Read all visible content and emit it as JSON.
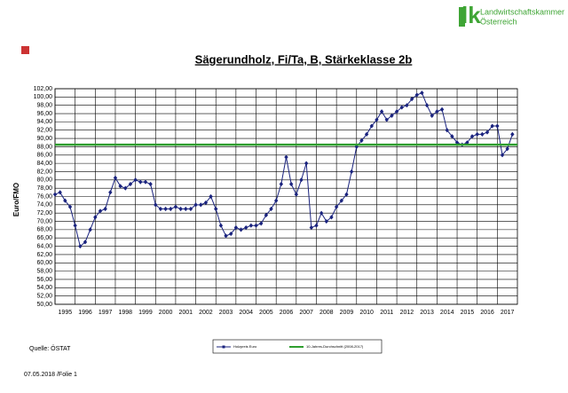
{
  "header": {
    "logo_mark": "lk",
    "logo_line1": "Landwirtschaftskammer",
    "logo_line2": "Österreich"
  },
  "chart_data": {
    "type": "line",
    "title": "Sägerundholz, Fi/Ta, B, Stärkeklasse 2b",
    "y_label": "Euro/FMO",
    "xlim": [
      1995,
      2018
    ],
    "xticks": [
      {
        "value": 1995,
        "label": "1995"
      },
      {
        "value": 1996,
        "label": "1996"
      },
      {
        "value": 1997,
        "label": "1997"
      },
      {
        "value": 1998,
        "label": "1998"
      },
      {
        "value": 1999,
        "label": "1999"
      },
      {
        "value": 2000,
        "label": "2000"
      },
      {
        "value": 2001,
        "label": "2001"
      },
      {
        "value": 2002,
        "label": "2002"
      },
      {
        "value": 2003,
        "label": "2003"
      },
      {
        "value": 2004,
        "label": "2004"
      },
      {
        "value": 2005,
        "label": "2005"
      },
      {
        "value": 2006,
        "label": "2006"
      },
      {
        "value": 2007,
        "label": "2007"
      },
      {
        "value": 2008,
        "label": "2008"
      },
      {
        "value": 2009,
        "label": "2009"
      },
      {
        "value": 2010,
        "label": "2010"
      },
      {
        "value": 2011,
        "label": "2011"
      },
      {
        "value": 2012,
        "label": "2012"
      },
      {
        "value": 2013,
        "label": "2013"
      },
      {
        "value": 2014,
        "label": "2014"
      },
      {
        "value": 2015,
        "label": "2015"
      },
      {
        "value": 2016,
        "label": "2016"
      },
      {
        "value": 2017,
        "label": "2017"
      }
    ],
    "ylim": [
      50,
      102
    ],
    "yticks": [
      {
        "value": 50,
        "label": "50,00"
      },
      {
        "value": 52,
        "label": "52,00"
      },
      {
        "value": 54,
        "label": "54,00"
      },
      {
        "value": 56,
        "label": "56,00"
      },
      {
        "value": 58,
        "label": "58,00"
      },
      {
        "value": 60,
        "label": "60,00"
      },
      {
        "value": 62,
        "label": "62,00"
      },
      {
        "value": 64,
        "label": "64,00"
      },
      {
        "value": 66,
        "label": "66,00"
      },
      {
        "value": 68,
        "label": "68,00"
      },
      {
        "value": 70,
        "label": "70,00"
      },
      {
        "value": 72,
        "label": "72,00"
      },
      {
        "value": 74,
        "label": "74,00"
      },
      {
        "value": 76,
        "label": "76,00"
      },
      {
        "value": 78,
        "label": "78,00"
      },
      {
        "value": 80,
        "label": "80,00"
      },
      {
        "value": 82,
        "label": "82,00"
      },
      {
        "value": 84,
        "label": "84,00"
      },
      {
        "value": 86,
        "label": "86,00"
      },
      {
        "value": 88,
        "label": "88,00"
      },
      {
        "value": 90,
        "label": "90,00"
      },
      {
        "value": 92,
        "label": "92,00"
      },
      {
        "value": 94,
        "label": "94,00"
      },
      {
        "value": 96,
        "label": "96,00"
      },
      {
        "value": 98,
        "label": "98,00"
      },
      {
        "value": 100,
        "label": "100,00"
      },
      {
        "value": 102,
        "label": "102,00"
      }
    ],
    "grid": true,
    "series": [
      {
        "name": "Holzpreis Euro",
        "color": "#1a237e",
        "markers": true,
        "x": [
          1995,
          1995.25,
          1995.5,
          1995.75,
          1996,
          1996.25,
          1996.5,
          1996.75,
          1997,
          1997.25,
          1997.5,
          1997.75,
          1998,
          1998.25,
          1998.5,
          1998.75,
          1999,
          1999.25,
          1999.5,
          1999.75,
          2000,
          2000.25,
          2000.5,
          2000.75,
          2001,
          2001.25,
          2001.5,
          2001.75,
          2002,
          2002.25,
          2002.5,
          2002.75,
          2003,
          2003.25,
          2003.5,
          2003.75,
          2004,
          2004.25,
          2004.5,
          2004.75,
          2005,
          2005.25,
          2005.5,
          2005.75,
          2006,
          2006.25,
          2006.5,
          2006.75,
          2007,
          2007.25,
          2007.5,
          2007.75,
          2008,
          2008.25,
          2008.5,
          2008.75,
          2009,
          2009.25,
          2009.5,
          2009.75,
          2010,
          2010.25,
          2010.5,
          2010.75,
          2011,
          2011.25,
          2011.5,
          2011.75,
          2012,
          2012.25,
          2012.5,
          2012.75,
          2013,
          2013.25,
          2013.5,
          2013.75,
          2014,
          2014.25,
          2014.5,
          2014.75,
          2015,
          2015.25,
          2015.5,
          2015.75,
          2016,
          2016.25,
          2016.5,
          2016.75,
          2017,
          2017.25,
          2017.5,
          2017.75
        ],
        "values": [
          76.5,
          77,
          75,
          73.5,
          69,
          64,
          65,
          68,
          71,
          72.5,
          73,
          77,
          80.5,
          78.5,
          78,
          79,
          80,
          79.5,
          79.5,
          79,
          74,
          73,
          73,
          73,
          73.5,
          73,
          73,
          73,
          74,
          74,
          74.5,
          76,
          73,
          69,
          66.5,
          67,
          68.5,
          68,
          68.5,
          69,
          69,
          69.5,
          71.5,
          73,
          75,
          79,
          85.5,
          79,
          76.5,
          80,
          84,
          68.5,
          69,
          72,
          70,
          71,
          73.5,
          75,
          76.5,
          82,
          88,
          89.5,
          91,
          93,
          94.5,
          96.5,
          94.5,
          95.5,
          96.5,
          97.5,
          98,
          99.5,
          100.5,
          101,
          98,
          95.5,
          96.5,
          97,
          92,
          90.5,
          89,
          88.5,
          89,
          90.5,
          91,
          91,
          91.5,
          93,
          93,
          86,
          87.5,
          91
        ]
      },
      {
        "name": "10-Jahres-Durchschnitt (2008-2017)",
        "color": "#2e9e2e",
        "markers": false,
        "x": [
          1995,
          2018
        ],
        "values": [
          88.5,
          88.5
        ]
      }
    ],
    "source": "Quelle: ÖSTAT"
  },
  "footer": "07.05.2018 /Folie 1"
}
